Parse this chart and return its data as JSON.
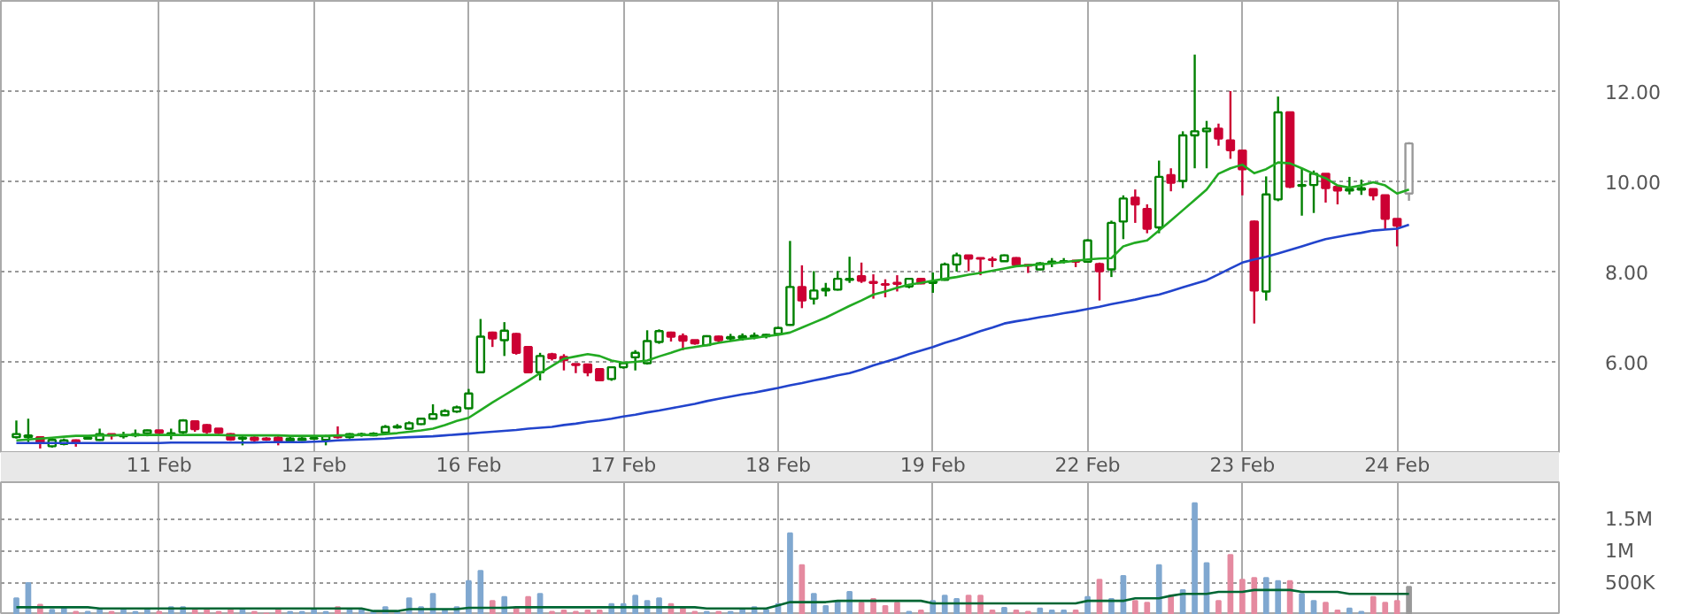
{
  "chart_data": [
    {
      "type": "candlestick",
      "grid": true,
      "ylim": [
        4,
        14
      ],
      "categories": [
        null,
        null,
        null,
        null,
        null,
        null,
        null,
        null,
        null,
        null,
        null,
        null,
        "11 Feb",
        null,
        null,
        null,
        null,
        null,
        null,
        null,
        null,
        null,
        null,
        null,
        null,
        "12 Feb",
        null,
        null,
        null,
        null,
        null,
        null,
        null,
        null,
        null,
        null,
        null,
        null,
        "16 Feb",
        null,
        null,
        null,
        null,
        null,
        null,
        null,
        null,
        null,
        null,
        null,
        null,
        "17 Feb",
        null,
        null,
        null,
        null,
        null,
        null,
        null,
        null,
        null,
        null,
        null,
        null,
        "18 Feb",
        null,
        null,
        null,
        null,
        null,
        null,
        null,
        null,
        null,
        null,
        null,
        null,
        "19 Feb",
        null,
        null,
        null,
        null,
        null,
        null,
        null,
        null,
        null,
        null,
        null,
        null,
        "22 Feb",
        null,
        null,
        null,
        null,
        null,
        null,
        null,
        null,
        null,
        null,
        null,
        null,
        "23 Feb",
        null,
        null,
        null,
        null,
        null,
        null,
        null,
        null,
        null,
        null,
        null,
        null,
        "24 Feb",
        null
      ],
      "yticks": [
        {
          "value": 6,
          "label": "6.00"
        },
        {
          "value": 8,
          "label": "8.00"
        },
        {
          "value": 10,
          "label": "10.00"
        },
        {
          "value": 12,
          "label": "12.00"
        }
      ],
      "ohlc": [
        [
          4.33,
          4.7,
          4.3,
          4.4
        ],
        [
          4.33,
          4.74,
          4.22,
          4.37
        ],
        [
          4.33,
          4.35,
          4.08,
          4.22
        ],
        [
          4.13,
          4.32,
          4.1,
          4.27
        ],
        [
          4.18,
          4.3,
          4.15,
          4.26
        ],
        [
          4.26,
          4.28,
          4.12,
          4.22
        ],
        [
          4.3,
          4.36,
          4.28,
          4.32
        ],
        [
          4.27,
          4.52,
          4.25,
          4.4
        ],
        [
          4.4,
          4.4,
          4.28,
          4.37
        ],
        [
          4.35,
          4.45,
          4.3,
          4.37
        ],
        [
          4.37,
          4.5,
          4.33,
          4.4
        ],
        [
          4.42,
          4.5,
          4.35,
          4.48
        ],
        [
          4.48,
          4.48,
          4.36,
          4.43
        ],
        [
          4.4,
          4.52,
          4.28,
          4.42
        ],
        [
          4.44,
          4.73,
          4.4,
          4.7
        ],
        [
          4.68,
          4.7,
          4.45,
          4.51
        ],
        [
          4.6,
          4.62,
          4.4,
          4.45
        ],
        [
          4.52,
          4.52,
          4.4,
          4.43
        ],
        [
          4.4,
          4.42,
          4.25,
          4.28
        ],
        [
          4.3,
          4.35,
          4.15,
          4.32
        ],
        [
          4.32,
          4.35,
          4.23,
          4.27
        ],
        [
          4.3,
          4.33,
          4.25,
          4.28
        ],
        [
          4.32,
          4.35,
          4.15,
          4.24
        ],
        [
          4.25,
          4.35,
          4.22,
          4.3
        ],
        [
          4.27,
          4.33,
          4.25,
          4.3
        ],
        [
          4.3,
          4.33,
          4.27,
          4.31
        ],
        [
          4.27,
          4.38,
          4.15,
          4.35
        ],
        [
          4.35,
          4.57,
          4.3,
          4.33
        ],
        [
          4.33,
          4.42,
          4.3,
          4.4
        ],
        [
          4.38,
          4.43,
          4.34,
          4.4
        ],
        [
          4.37,
          4.44,
          4.35,
          4.41
        ],
        [
          4.43,
          4.6,
          4.4,
          4.56
        ],
        [
          4.55,
          4.62,
          4.52,
          4.57
        ],
        [
          4.52,
          4.68,
          4.5,
          4.64
        ],
        [
          4.62,
          4.76,
          4.6,
          4.74
        ],
        [
          4.74,
          5.06,
          4.72,
          4.84
        ],
        [
          4.82,
          4.95,
          4.8,
          4.91
        ],
        [
          4.9,
          5.03,
          4.87,
          4.99
        ],
        [
          4.97,
          5.4,
          4.95,
          5.3
        ],
        [
          5.77,
          6.95,
          5.75,
          6.56
        ],
        [
          6.65,
          6.67,
          6.33,
          6.52
        ],
        [
          6.48,
          6.88,
          6.13,
          6.69
        ],
        [
          6.62,
          6.64,
          6.16,
          6.2
        ],
        [
          6.33,
          6.35,
          5.75,
          5.77
        ],
        [
          5.77,
          6.2,
          5.59,
          6.13
        ],
        [
          6.17,
          6.2,
          6.03,
          6.08
        ],
        [
          6.11,
          6.17,
          5.81,
          6.04
        ],
        [
          5.95,
          5.96,
          5.75,
          5.93
        ],
        [
          5.94,
          5.96,
          5.68,
          5.77
        ],
        [
          5.84,
          5.86,
          5.57,
          5.59
        ],
        [
          5.62,
          5.9,
          5.58,
          5.88
        ],
        [
          5.88,
          5.99,
          5.85,
          5.97
        ],
        [
          6.1,
          6.26,
          5.81,
          6.2
        ],
        [
          5.97,
          6.7,
          5.94,
          6.46
        ],
        [
          6.44,
          6.72,
          6.4,
          6.68
        ],
        [
          6.65,
          6.67,
          6.45,
          6.56
        ],
        [
          6.57,
          6.63,
          6.26,
          6.47
        ],
        [
          6.48,
          6.49,
          6.38,
          6.41
        ],
        [
          6.37,
          6.59,
          6.35,
          6.57
        ],
        [
          6.56,
          6.58,
          6.43,
          6.48
        ],
        [
          6.52,
          6.62,
          6.45,
          6.55
        ],
        [
          6.53,
          6.63,
          6.47,
          6.57
        ],
        [
          6.55,
          6.65,
          6.5,
          6.58
        ],
        [
          6.57,
          6.62,
          6.52,
          6.6
        ],
        [
          6.62,
          6.78,
          6.6,
          6.75
        ],
        [
          6.82,
          8.68,
          6.8,
          7.66
        ],
        [
          7.66,
          8.14,
          7.19,
          7.36
        ],
        [
          7.4,
          8.01,
          7.27,
          7.58
        ],
        [
          7.58,
          7.75,
          7.45,
          7.62
        ],
        [
          7.6,
          8.01,
          7.58,
          7.84
        ],
        [
          7.82,
          8.33,
          7.75,
          7.84
        ],
        [
          7.9,
          8.2,
          7.75,
          7.8
        ],
        [
          7.77,
          7.94,
          7.4,
          7.75
        ],
        [
          7.72,
          7.83,
          7.43,
          7.71
        ],
        [
          7.75,
          7.92,
          7.56,
          7.73
        ],
        [
          7.67,
          7.86,
          7.63,
          7.84
        ],
        [
          7.84,
          7.86,
          7.72,
          7.74
        ],
        [
          7.75,
          7.98,
          7.53,
          7.78
        ],
        [
          7.82,
          8.2,
          7.8,
          8.16
        ],
        [
          8.16,
          8.42,
          8.0,
          8.36
        ],
        [
          8.36,
          8.36,
          8.01,
          8.29
        ],
        [
          8.3,
          8.3,
          7.92,
          8.29
        ],
        [
          8.27,
          8.33,
          8.1,
          8.26
        ],
        [
          8.23,
          8.38,
          8.22,
          8.36
        ],
        [
          8.3,
          8.32,
          8.13,
          8.15
        ],
        [
          8.15,
          8.16,
          7.97,
          8.13
        ],
        [
          8.05,
          8.21,
          8.03,
          8.18
        ],
        [
          8.19,
          8.3,
          8.1,
          8.22
        ],
        [
          8.22,
          8.3,
          8.18,
          8.23
        ],
        [
          8.24,
          8.25,
          8.1,
          8.22
        ],
        [
          8.22,
          8.72,
          8.2,
          8.69
        ],
        [
          8.17,
          8.2,
          7.36,
          8.01
        ],
        [
          8.05,
          9.13,
          7.88,
          9.08
        ],
        [
          9.11,
          9.69,
          8.72,
          9.62
        ],
        [
          9.64,
          9.82,
          9.08,
          9.49
        ],
        [
          9.39,
          9.49,
          8.85,
          8.95
        ],
        [
          8.98,
          10.46,
          8.85,
          10.1
        ],
        [
          10.14,
          10.29,
          9.78,
          9.97
        ],
        [
          10.01,
          11.11,
          9.85,
          11.02
        ],
        [
          11.02,
          12.81,
          10.29,
          11.11
        ],
        [
          11.11,
          11.34,
          10.29,
          11.17
        ],
        [
          11.17,
          11.28,
          10.79,
          10.95
        ],
        [
          10.91,
          12.0,
          10.5,
          10.69
        ],
        [
          10.68,
          10.7,
          9.69,
          10.27
        ],
        [
          9.11,
          9.13,
          6.85,
          7.58
        ],
        [
          7.56,
          10.11,
          7.36,
          9.71
        ],
        [
          9.6,
          11.88,
          9.56,
          11.53
        ],
        [
          11.53,
          11.53,
          9.85,
          9.88
        ],
        [
          9.9,
          10.29,
          9.24,
          9.92
        ],
        [
          9.92,
          10.24,
          9.3,
          10.17
        ],
        [
          10.17,
          10.17,
          9.53,
          9.85
        ],
        [
          9.88,
          9.88,
          9.49,
          9.8
        ],
        [
          9.8,
          10.1,
          9.71,
          9.83
        ],
        [
          9.82,
          10.04,
          9.7,
          9.85
        ],
        [
          9.83,
          9.83,
          9.58,
          9.69
        ],
        [
          9.69,
          9.69,
          8.94,
          9.17
        ],
        [
          9.17,
          9.17,
          8.56,
          9.02
        ],
        [
          9.73,
          10.87,
          9.57,
          10.84
        ]
      ],
      "colors": [
        "#008000",
        "#008000",
        "#cc0033",
        "#008000",
        "#008000",
        "#cc0033",
        "#008000",
        "#008000",
        "#cc0033",
        "#008000",
        "#008000",
        "#008000",
        "#cc0033",
        "#008000",
        "#008000",
        "#cc0033",
        "#cc0033",
        "#cc0033",
        "#cc0033",
        "#008000",
        "#cc0033",
        "#cc0033",
        "#cc0033",
        "#008000",
        "#008000",
        "#008000",
        "#008000",
        "#cc0033",
        "#008000",
        "#008000",
        "#008000",
        "#008000",
        "#008000",
        "#008000",
        "#008000",
        "#008000",
        "#008000",
        "#008000",
        "#008000",
        "#008000",
        "#cc0033",
        "#008000",
        "#cc0033",
        "#cc0033",
        "#008000",
        "#cc0033",
        "#cc0033",
        "#cc0033",
        "#cc0033",
        "#cc0033",
        "#008000",
        "#008000",
        "#008000",
        "#008000",
        "#008000",
        "#cc0033",
        "#cc0033",
        "#cc0033",
        "#008000",
        "#cc0033",
        "#008000",
        "#008000",
        "#008000",
        "#008000",
        "#008000",
        "#008000",
        "#cc0033",
        "#008000",
        "#008000",
        "#008000",
        "#008000",
        "#cc0033",
        "#cc0033",
        "#cc0033",
        "#cc0033",
        "#008000",
        "#cc0033",
        "#008000",
        "#008000",
        "#008000",
        "#cc0033",
        "#cc0033",
        "#cc0033",
        "#008000",
        "#cc0033",
        "#cc0033",
        "#008000",
        "#008000",
        "#008000",
        "#cc0033",
        "#008000",
        "#cc0033",
        "#008000",
        "#008000",
        "#cc0033",
        "#cc0033",
        "#008000",
        "#cc0033",
        "#008000",
        "#008000",
        "#008000",
        "#cc0033",
        "#cc0033",
        "#cc0033",
        "#cc0033",
        "#008000",
        "#008000",
        "#cc0033",
        "#008000",
        "#008000",
        "#cc0033",
        "#cc0033",
        "#008000",
        "#008000",
        "#cc0033",
        "#cc0033",
        "#cc0033",
        "#999999"
      ],
      "series": [
        {
          "type": "line",
          "color": "#22aa22",
          "values": [
            4.26,
            4.28,
            4.3,
            4.32,
            4.34,
            4.36,
            4.36,
            4.37,
            4.37,
            4.38,
            4.38,
            4.38,
            4.38,
            4.38,
            4.38,
            4.38,
            4.38,
            4.38,
            4.37,
            4.37,
            4.37,
            4.37,
            4.37,
            4.36,
            4.36,
            4.36,
            4.36,
            4.37,
            4.37,
            4.38,
            4.38,
            4.4,
            4.42,
            4.45,
            4.48,
            4.52,
            4.6,
            4.69,
            4.76,
            4.93,
            5.1,
            5.26,
            5.42,
            5.58,
            5.75,
            5.91,
            6.07,
            6.12,
            6.17,
            6.13,
            6.03,
            5.98,
            6.0,
            6.03,
            6.12,
            6.2,
            6.29,
            6.33,
            6.37,
            6.42,
            6.46,
            6.5,
            6.53,
            6.57,
            6.6,
            6.65,
            6.76,
            6.87,
            6.98,
            7.11,
            7.24,
            7.36,
            7.49,
            7.56,
            7.64,
            7.71,
            7.75,
            7.8,
            7.84,
            7.88,
            7.93,
            7.97,
            8.02,
            8.07,
            8.12,
            8.14,
            8.16,
            8.18,
            8.21,
            8.24,
            8.27,
            8.29,
            8.3,
            8.56,
            8.64,
            8.69,
            8.91,
            9.13,
            9.36,
            9.59,
            9.82,
            10.17,
            10.29,
            10.37,
            10.18,
            10.27,
            10.42,
            10.4,
            10.29,
            10.17,
            10.07,
            9.91,
            9.86,
            9.91,
            9.98,
            9.91,
            9.73,
            9.82
          ]
        },
        {
          "type": "line",
          "color": "#2244cc",
          "values": [
            4.2,
            4.2,
            4.2,
            4.2,
            4.2,
            4.2,
            4.2,
            4.2,
            4.2,
            4.2,
            4.2,
            4.2,
            4.2,
            4.21,
            4.21,
            4.21,
            4.21,
            4.21,
            4.21,
            4.21,
            4.21,
            4.22,
            4.22,
            4.22,
            4.22,
            4.23,
            4.24,
            4.26,
            4.27,
            4.28,
            4.29,
            4.3,
            4.32,
            4.33,
            4.34,
            4.35,
            4.37,
            4.39,
            4.41,
            4.43,
            4.45,
            4.47,
            4.49,
            4.52,
            4.54,
            4.56,
            4.6,
            4.63,
            4.67,
            4.7,
            4.74,
            4.79,
            4.83,
            4.88,
            4.92,
            4.97,
            5.02,
            5.07,
            5.13,
            5.18,
            5.23,
            5.28,
            5.32,
            5.37,
            5.42,
            5.48,
            5.53,
            5.59,
            5.64,
            5.7,
            5.75,
            5.83,
            5.92,
            6.0,
            6.08,
            6.17,
            6.25,
            6.33,
            6.42,
            6.5,
            6.59,
            6.68,
            6.76,
            6.85,
            6.9,
            6.94,
            6.99,
            7.03,
            7.08,
            7.12,
            7.17,
            7.22,
            7.28,
            7.33,
            7.38,
            7.44,
            7.49,
            7.57,
            7.65,
            7.73,
            7.81,
            7.94,
            8.07,
            8.2,
            8.27,
            8.33,
            8.4,
            8.48,
            8.56,
            8.64,
            8.72,
            8.77,
            8.82,
            8.86,
            8.91,
            8.93,
            8.95,
            9.04
          ]
        }
      ]
    },
    {
      "type": "bar",
      "grid": true,
      "tick_labels": "y",
      "ylim": [
        0,
        2080000
      ],
      "categories": [
        null,
        null,
        null,
        null,
        null,
        null,
        null,
        null,
        null,
        null,
        null,
        null,
        null,
        null,
        null,
        null,
        null,
        null,
        null,
        null,
        null,
        null,
        null,
        null,
        null,
        null,
        null,
        null,
        null,
        null,
        null,
        null,
        null,
        null,
        null,
        null,
        null,
        null,
        null,
        null,
        null,
        null,
        null,
        null,
        null,
        null,
        null,
        null,
        null,
        null,
        null,
        null,
        null,
        null,
        null,
        null,
        null,
        null,
        null,
        null,
        null,
        null,
        null,
        null,
        null,
        null,
        null,
        null,
        null,
        null,
        null,
        null,
        null,
        null,
        null,
        null,
        null,
        null,
        null,
        null,
        null,
        null,
        null,
        null,
        null,
        null,
        null,
        null,
        null,
        null,
        null,
        null,
        null,
        null,
        null,
        null,
        null,
        null,
        null,
        null,
        null,
        null,
        null,
        null,
        null,
        null,
        null,
        null,
        null,
        null,
        null,
        null,
        null,
        null,
        null,
        null,
        null,
        null
      ],
      "yticks": [
        {
          "value": 500000,
          "label": "500K"
        },
        {
          "value": 1000000,
          "label": "1M"
        },
        {
          "value": 1500000,
          "label": "1.5M"
        }
      ],
      "values": [
        260000,
        500000,
        160000,
        80000,
        110000,
        50000,
        50000,
        80000,
        50000,
        80000,
        50000,
        80000,
        50000,
        120000,
        120000,
        80000,
        80000,
        50000,
        80000,
        80000,
        50000,
        20000,
        80000,
        50000,
        50000,
        80000,
        50000,
        120000,
        80000,
        80000,
        50000,
        120000,
        50000,
        260000,
        120000,
        330000,
        80000,
        120000,
        530000,
        690000,
        220000,
        280000,
        120000,
        280000,
        330000,
        50000,
        70000,
        50000,
        70000,
        70000,
        170000,
        170000,
        300000,
        220000,
        260000,
        170000,
        120000,
        50000,
        50000,
        50000,
        50000,
        80000,
        120000,
        80000,
        170000,
        1280000,
        780000,
        330000,
        140000,
        200000,
        360000,
        190000,
        250000,
        140000,
        190000,
        50000,
        70000,
        220000,
        300000,
        250000,
        300000,
        300000,
        70000,
        110000,
        70000,
        50000,
        100000,
        70000,
        70000,
        70000,
        280000,
        550000,
        250000,
        610000,
        220000,
        190000,
        780000,
        300000,
        390000,
        1750000,
        810000,
        220000,
        940000,
        550000,
        580000,
        580000,
        530000,
        530000,
        330000,
        220000,
        190000,
        70000,
        100000,
        50000,
        280000,
        190000,
        220000,
        440000
      ],
      "colors": [
        "#80a8d0",
        "#80a8d0",
        "#e58aa0",
        "#80a8d0",
        "#80a8d0",
        "#e58aa0",
        "#80a8d0",
        "#80a8d0",
        "#e58aa0",
        "#80a8d0",
        "#80a8d0",
        "#80a8d0",
        "#e58aa0",
        "#80a8d0",
        "#80a8d0",
        "#e58aa0",
        "#e58aa0",
        "#e58aa0",
        "#e58aa0",
        "#80a8d0",
        "#e58aa0",
        "#e58aa0",
        "#e58aa0",
        "#80a8d0",
        "#80a8d0",
        "#80a8d0",
        "#80a8d0",
        "#e58aa0",
        "#80a8d0",
        "#80a8d0",
        "#80a8d0",
        "#80a8d0",
        "#80a8d0",
        "#80a8d0",
        "#80a8d0",
        "#80a8d0",
        "#80a8d0",
        "#80a8d0",
        "#80a8d0",
        "#80a8d0",
        "#e58aa0",
        "#80a8d0",
        "#e58aa0",
        "#e58aa0",
        "#80a8d0",
        "#e58aa0",
        "#e58aa0",
        "#e58aa0",
        "#e58aa0",
        "#e58aa0",
        "#80a8d0",
        "#80a8d0",
        "#80a8d0",
        "#80a8d0",
        "#80a8d0",
        "#e58aa0",
        "#e58aa0",
        "#e58aa0",
        "#80a8d0",
        "#e58aa0",
        "#80a8d0",
        "#80a8d0",
        "#80a8d0",
        "#80a8d0",
        "#80a8d0",
        "#80a8d0",
        "#e58aa0",
        "#80a8d0",
        "#80a8d0",
        "#80a8d0",
        "#80a8d0",
        "#e58aa0",
        "#e58aa0",
        "#e58aa0",
        "#e58aa0",
        "#80a8d0",
        "#e58aa0",
        "#80a8d0",
        "#80a8d0",
        "#80a8d0",
        "#e58aa0",
        "#e58aa0",
        "#e58aa0",
        "#80a8d0",
        "#e58aa0",
        "#e58aa0",
        "#80a8d0",
        "#80a8d0",
        "#80a8d0",
        "#e58aa0",
        "#80a8d0",
        "#e58aa0",
        "#80a8d0",
        "#80a8d0",
        "#e58aa0",
        "#e58aa0",
        "#80a8d0",
        "#e58aa0",
        "#80a8d0",
        "#80a8d0",
        "#80a8d0",
        "#e58aa0",
        "#e58aa0",
        "#e58aa0",
        "#e58aa0",
        "#80a8d0",
        "#80a8d0",
        "#e58aa0",
        "#80a8d0",
        "#80a8d0",
        "#e58aa0",
        "#e58aa0",
        "#80a8d0",
        "#80a8d0",
        "#e58aa0",
        "#e58aa0",
        "#e58aa0",
        "#999999"
      ],
      "series": [
        {
          "type": "line",
          "color": "#006633",
          "values": [
            120000,
            120000,
            120000,
            120000,
            120000,
            120000,
            120000,
            100000,
            100000,
            100000,
            100000,
            100000,
            100000,
            100000,
            100000,
            100000,
            100000,
            100000,
            100000,
            100000,
            100000,
            100000,
            100000,
            100000,
            100000,
            100000,
            100000,
            100000,
            100000,
            100000,
            60000,
            60000,
            60000,
            90000,
            90000,
            90000,
            90000,
            90000,
            110000,
            110000,
            110000,
            110000,
            120000,
            120000,
            120000,
            120000,
            120000,
            120000,
            120000,
            120000,
            120000,
            120000,
            120000,
            120000,
            120000,
            120000,
            120000,
            120000,
            100000,
            100000,
            100000,
            100000,
            100000,
            100000,
            150000,
            200000,
            200000,
            200000,
            200000,
            220000,
            220000,
            220000,
            220000,
            220000,
            220000,
            220000,
            220000,
            180000,
            180000,
            180000,
            180000,
            180000,
            180000,
            180000,
            180000,
            180000,
            180000,
            180000,
            180000,
            180000,
            220000,
            220000,
            220000,
            220000,
            260000,
            260000,
            260000,
            300000,
            330000,
            330000,
            330000,
            360000,
            360000,
            360000,
            390000,
            390000,
            390000,
            390000,
            360000,
            360000,
            360000,
            360000,
            330000,
            330000,
            330000,
            330000,
            330000,
            330000
          ]
        }
      ]
    }
  ]
}
